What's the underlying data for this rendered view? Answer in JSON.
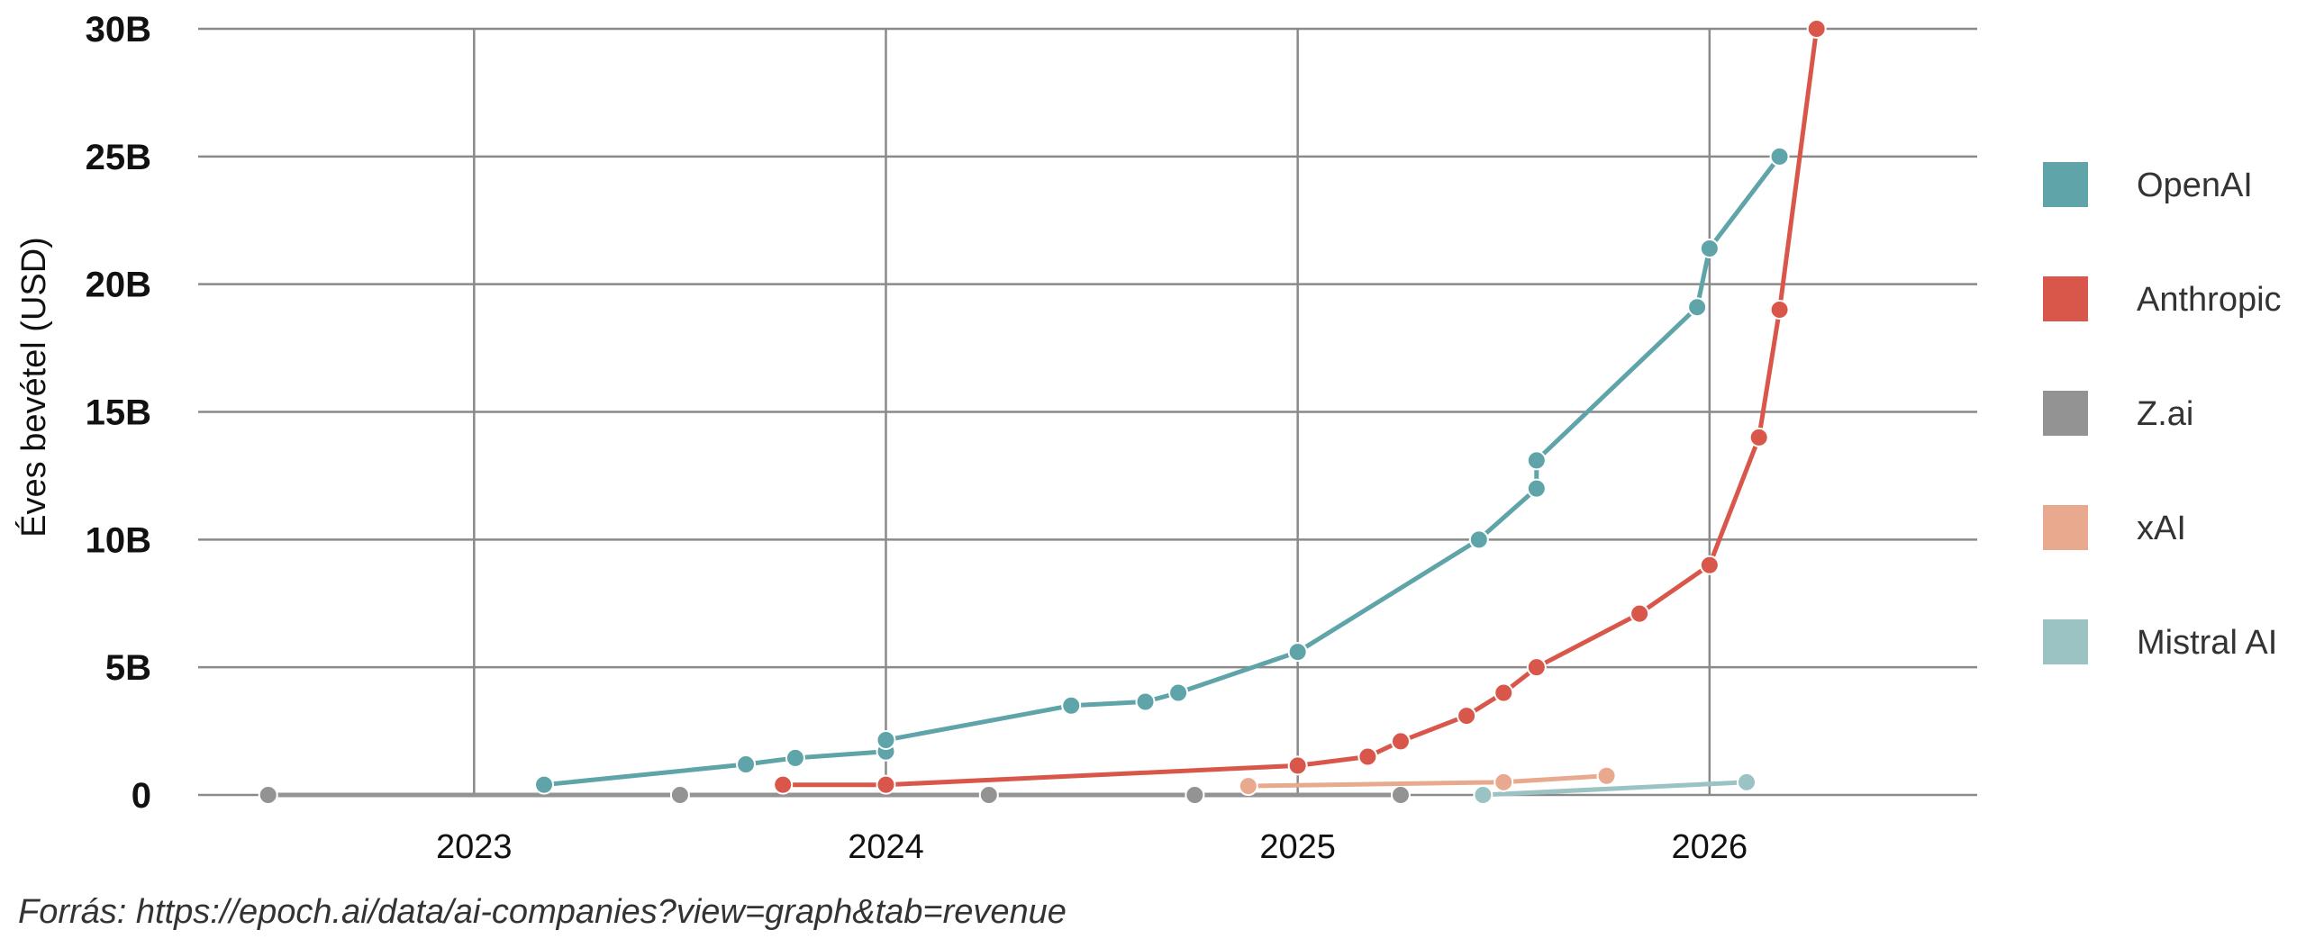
{
  "chart_data": {
    "type": "line",
    "title": "",
    "xlabel": "",
    "ylabel": "Éves bevétel (USD)",
    "xlim": [
      2022.33,
      2026.65
    ],
    "ylim": [
      0,
      30
    ],
    "x_ticks": [
      {
        "value": 2023,
        "label": "2023"
      },
      {
        "value": 2024,
        "label": "2024"
      },
      {
        "value": 2025,
        "label": "2025"
      },
      {
        "value": 2026,
        "label": "2026"
      }
    ],
    "y_ticks": [
      {
        "value": 0,
        "label": "0"
      },
      {
        "value": 5,
        "label": "5B"
      },
      {
        "value": 10,
        "label": "10B"
      },
      {
        "value": 15,
        "label": "15B"
      },
      {
        "value": 20,
        "label": "20B"
      },
      {
        "value": 25,
        "label": "25B"
      },
      {
        "value": 30,
        "label": "30B"
      }
    ],
    "grid": true,
    "legend_position": "right",
    "series": [
      {
        "name": "OpenAI",
        "color": "#5fa4a8",
        "points": [
          [
            2023.17,
            0.4
          ],
          [
            2023.66,
            1.2
          ],
          [
            2023.78,
            1.45
          ],
          [
            2024.0,
            1.7
          ],
          [
            2024.0,
            2.15
          ],
          [
            2024.45,
            3.5
          ],
          [
            2024.63,
            3.65
          ],
          [
            2024.71,
            4.0
          ],
          [
            2025.0,
            5.6
          ],
          [
            2025.44,
            10.0
          ],
          [
            2025.58,
            12.0
          ],
          [
            2025.58,
            13.1
          ],
          [
            2025.97,
            19.1
          ],
          [
            2026.0,
            21.4
          ],
          [
            2026.17,
            25.0
          ]
        ]
      },
      {
        "name": "Anthropic",
        "color": "#d9574a",
        "points": [
          [
            2023.75,
            0.4
          ],
          [
            2024.0,
            0.4
          ],
          [
            2025.0,
            1.15
          ],
          [
            2025.17,
            1.5
          ],
          [
            2025.25,
            2.1
          ],
          [
            2025.41,
            3.1
          ],
          [
            2025.5,
            4.0
          ],
          [
            2025.58,
            5.0
          ],
          [
            2025.83,
            7.1
          ],
          [
            2026.0,
            9.0
          ],
          [
            2026.12,
            14.0
          ],
          [
            2026.17,
            19.0
          ],
          [
            2026.26,
            30.0
          ]
        ]
      },
      {
        "name": "Z.ai",
        "color": "#939393",
        "points": [
          [
            2022.5,
            0.0
          ],
          [
            2023.5,
            0.0
          ],
          [
            2024.25,
            0.0
          ],
          [
            2024.75,
            0.0
          ],
          [
            2025.25,
            0.0
          ]
        ]
      },
      {
        "name": "xAI",
        "color": "#e8a98f",
        "points": [
          [
            2024.88,
            0.35
          ],
          [
            2025.5,
            0.5
          ],
          [
            2025.75,
            0.75
          ]
        ]
      },
      {
        "name": "Mistral AI",
        "color": "#9cc3c3",
        "points": [
          [
            2025.45,
            0.0
          ],
          [
            2026.09,
            0.5
          ]
        ]
      }
    ]
  },
  "source_text": "Forrás: https://epoch.ai/data/ai-companies?view=graph&tab=revenue"
}
